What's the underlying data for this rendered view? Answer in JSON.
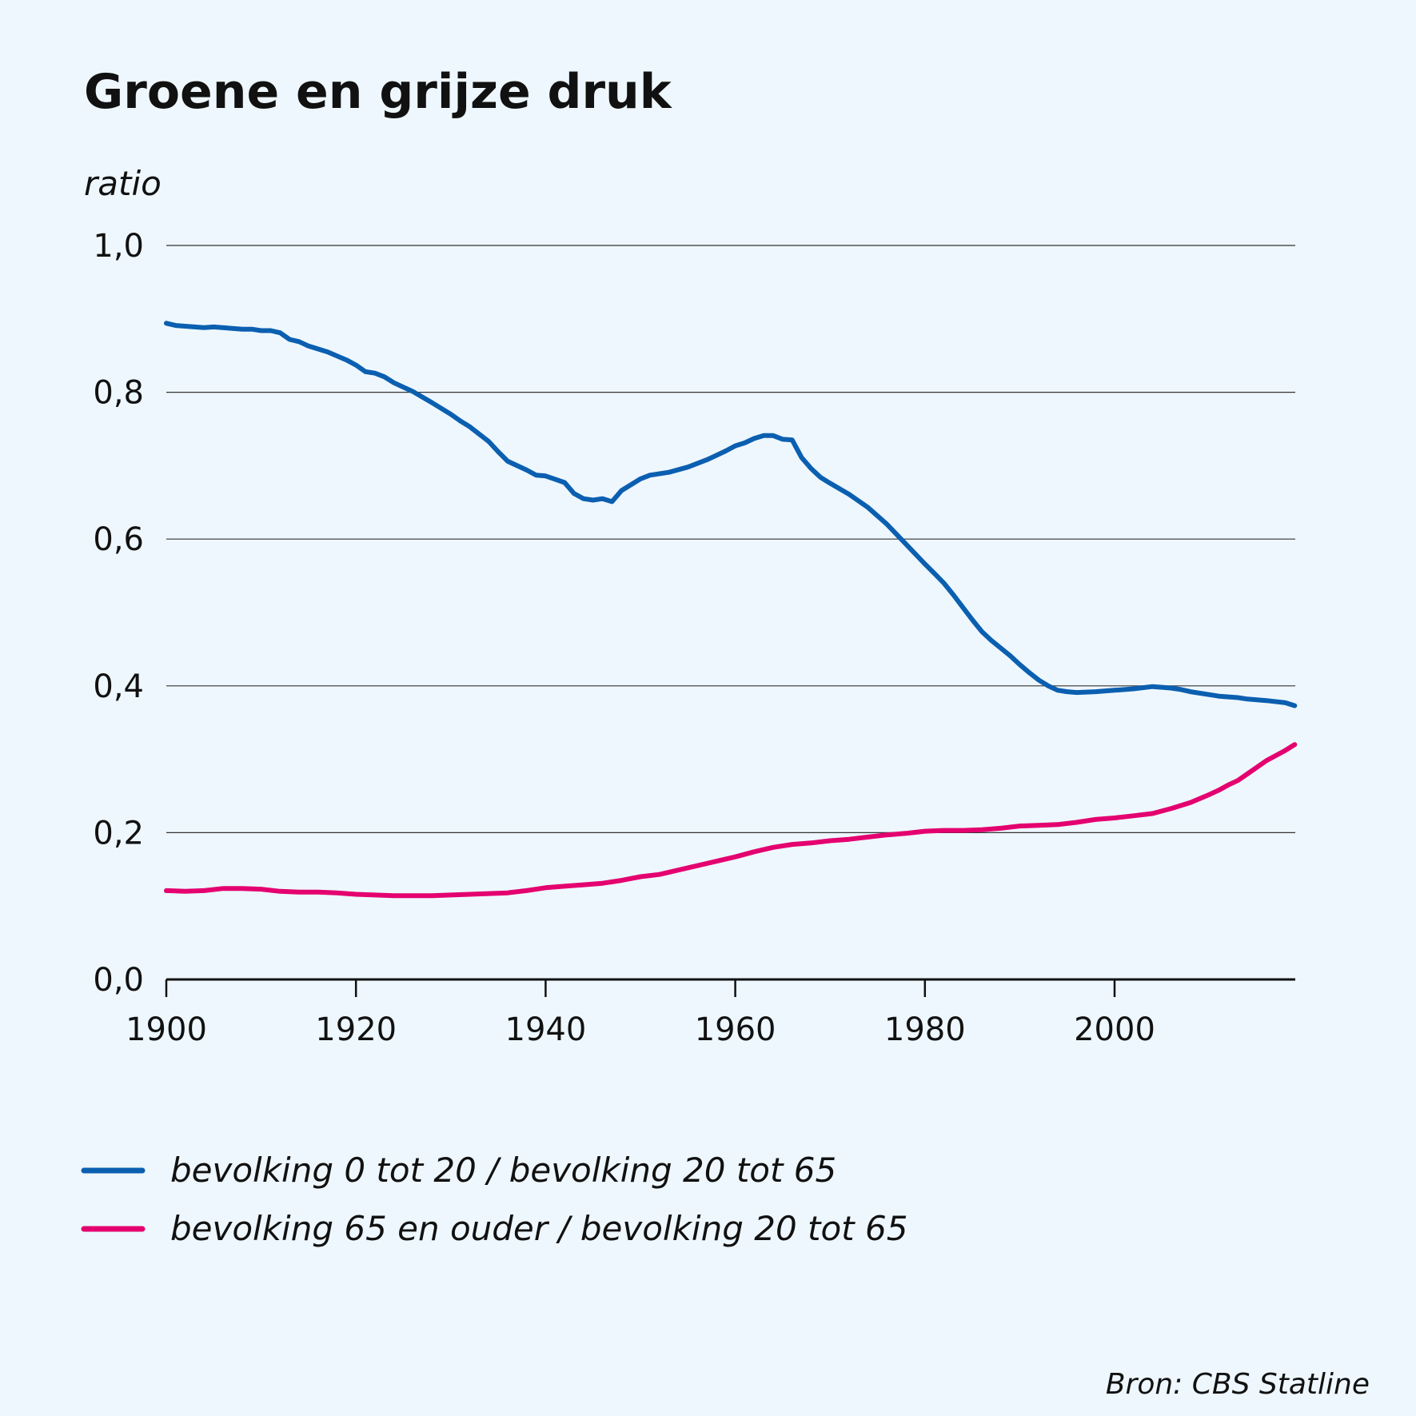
{
  "chart_data": {
    "type": "line",
    "title": "Groene en grijze druk",
    "ylabel": "ratio",
    "xlabel": "",
    "ylim": [
      0,
      1.0
    ],
    "xlim": [
      1900,
      2019
    ],
    "yticks": [
      0,
      0.2,
      0.4,
      0.6,
      0.8,
      1.0
    ],
    "ytick_labels": [
      "0,0",
      "0,2",
      "0,4",
      "0,6",
      "0,8",
      "1,0"
    ],
    "xticks": [
      1900,
      1920,
      1940,
      1960,
      1980,
      2000
    ],
    "xtick_labels": [
      "1900",
      "1920",
      "1940",
      "1960",
      "1980",
      "2000"
    ],
    "grid": true,
    "legend_position": "bottom-left",
    "source": "Bron: CBS Statline",
    "series": [
      {
        "name": "bevolking 0 tot 20 / bevolking 20 tot 65",
        "color": "#0b5fb0",
        "x": [
          1900,
          1901,
          1902,
          1904,
          1905,
          1908,
          1909,
          1910,
          1911,
          1912,
          1913,
          1914,
          1915,
          1917,
          1919,
          1920,
          1921,
          1922,
          1923,
          1924,
          1926,
          1928,
          1930,
          1931,
          1932,
          1934,
          1935,
          1936,
          1938,
          1939,
          1940,
          1942,
          1943,
          1944,
          1945,
          1946,
          1947,
          1948,
          1950,
          1951,
          1953,
          1955,
          1957,
          1959,
          1960,
          1961,
          1962,
          1963,
          1964,
          1965,
          1966,
          1967,
          1968,
          1969,
          1970,
          1972,
          1974,
          1976,
          1978,
          1980,
          1981,
          1982,
          1983,
          1984,
          1985,
          1986,
          1987,
          1989,
          1990,
          1991,
          1992,
          1993,
          1994,
          1995,
          1996,
          1998,
          2000,
          2002,
          2004,
          2005,
          2006,
          2007,
          2008,
          2010,
          2011,
          2012,
          2013,
          2014,
          2016,
          2018,
          2019
        ],
        "values": [
          0.894,
          0.891,
          0.89,
          0.888,
          0.889,
          0.886,
          0.886,
          0.884,
          0.884,
          0.881,
          0.872,
          0.869,
          0.863,
          0.855,
          0.844,
          0.837,
          0.828,
          0.826,
          0.821,
          0.813,
          0.801,
          0.786,
          0.77,
          0.761,
          0.753,
          0.733,
          0.719,
          0.706,
          0.694,
          0.687,
          0.686,
          0.677,
          0.662,
          0.655,
          0.653,
          0.655,
          0.651,
          0.666,
          0.682,
          0.687,
          0.691,
          0.698,
          0.708,
          0.72,
          0.727,
          0.731,
          0.737,
          0.741,
          0.741,
          0.736,
          0.735,
          0.711,
          0.696,
          0.684,
          0.676,
          0.661,
          0.643,
          0.62,
          0.593,
          0.566,
          0.553,
          0.54,
          0.524,
          0.507,
          0.49,
          0.474,
          0.462,
          0.441,
          0.429,
          0.418,
          0.408,
          0.4,
          0.394,
          0.392,
          0.391,
          0.392,
          0.394,
          0.396,
          0.399,
          0.398,
          0.397,
          0.395,
          0.392,
          0.388,
          0.386,
          0.385,
          0.384,
          0.382,
          0.38,
          0.377,
          0.373
        ]
      },
      {
        "name": "bevolking 65 en ouder / bevolking 20 tot 65",
        "color": "#e4006f",
        "x": [
          1900,
          1902,
          1904,
          1906,
          1908,
          1910,
          1912,
          1914,
          1916,
          1918,
          1920,
          1922,
          1924,
          1926,
          1928,
          1930,
          1932,
          1934,
          1936,
          1938,
          1940,
          1942,
          1944,
          1946,
          1948,
          1950,
          1952,
          1954,
          1956,
          1958,
          1960,
          1962,
          1964,
          1966,
          1968,
          1970,
          1972,
          1974,
          1976,
          1978,
          1980,
          1982,
          1984,
          1986,
          1988,
          1990,
          1992,
          1994,
          1996,
          1998,
          2000,
          2002,
          2004,
          2006,
          2008,
          2010,
          2011,
          2012,
          2013,
          2014,
          2016,
          2018,
          2019
        ],
        "values": [
          0.121,
          0.12,
          0.121,
          0.124,
          0.124,
          0.123,
          0.12,
          0.119,
          0.119,
          0.118,
          0.116,
          0.115,
          0.114,
          0.114,
          0.114,
          0.115,
          0.116,
          0.117,
          0.118,
          0.121,
          0.125,
          0.127,
          0.129,
          0.131,
          0.135,
          0.14,
          0.143,
          0.149,
          0.155,
          0.161,
          0.167,
          0.174,
          0.18,
          0.184,
          0.186,
          0.189,
          0.191,
          0.194,
          0.197,
          0.199,
          0.202,
          0.203,
          0.203,
          0.204,
          0.206,
          0.209,
          0.21,
          0.211,
          0.214,
          0.218,
          0.22,
          0.223,
          0.226,
          0.233,
          0.241,
          0.252,
          0.258,
          0.265,
          0.271,
          0.28,
          0.298,
          0.312,
          0.32
        ]
      }
    ]
  }
}
